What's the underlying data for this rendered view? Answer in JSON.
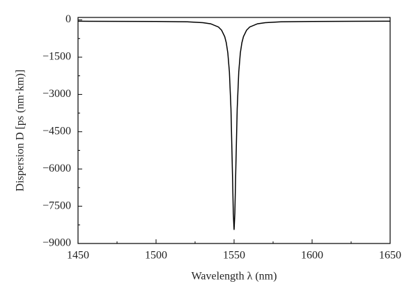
{
  "chart_data": {
    "type": "line",
    "x_label": "Wavelength λ (nm)",
    "y_label": "Dispersion D [ps (nm·km)]",
    "x": [
      1450,
      1500,
      1520,
      1530,
      1535,
      1540,
      1542,
      1544,
      1545,
      1546,
      1547,
      1548,
      1549,
      1549.5,
      1550,
      1550.5,
      1551,
      1552,
      1553,
      1554,
      1555,
      1556,
      1558,
      1560,
      1565,
      1570,
      1580,
      1600,
      1650
    ],
    "series": [
      {
        "color": "#000000",
        "values": [
          -52,
          -60,
          -77,
          -110,
          -156,
          -286,
          -413,
          -674,
          -920,
          -1334,
          -2094,
          -3573,
          -6291,
          -7781,
          -8450,
          -7781,
          -6291,
          -3573,
          -2094,
          -1334,
          -920,
          -674,
          -413,
          -286,
          -156,
          -110,
          -77,
          -60,
          -52
        ]
      }
    ],
    "xlim": [
      1450,
      1650
    ],
    "xticks": [
      1450,
      1500,
      1550,
      1600,
      1650
    ],
    "ylim": [
      -9000,
      100
    ],
    "yticks": [
      {
        "value": -9000,
        "label": "−9000"
      },
      {
        "value": -7500,
        "label": "−7500"
      },
      {
        "value": -6000,
        "label": "−6000"
      },
      {
        "value": -4500,
        "label": "−4500"
      },
      {
        "value": -3000,
        "label": "−3000"
      },
      {
        "value": -1500,
        "label": "−1500"
      },
      0
    ],
    "grid": false
  }
}
